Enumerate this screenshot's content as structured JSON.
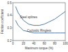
{
  "chart_data": {
    "type": "line",
    "x_label": "Maximum torque (%)",
    "y_label": "Friction coefficient",
    "x": [
      5,
      10,
      20,
      30,
      40,
      50,
      60,
      70,
      80,
      90,
      100
    ],
    "series": [
      {
        "name": "Steel splines",
        "color": "#3b6a96",
        "values": [
          0.47,
          0.42,
          0.36,
          0.33,
          0.32,
          0.32,
          0.33,
          0.35,
          0.37,
          0.4,
          0.43
        ]
      },
      {
        "name": "Cycloidic Ringlets",
        "color": "#3b6a96",
        "values": [
          0.36,
          0.32,
          0.28,
          0.27,
          0.26,
          0.26,
          0.26,
          0.26,
          0.26,
          0.26,
          0.26
        ]
      }
    ],
    "xlim": [
      0,
      100
    ],
    "xticks": [
      0,
      20,
      40,
      60,
      80,
      100
    ],
    "ylim": [
      0.2,
      0.5
    ],
    "yticks": [
      0.2,
      0.3,
      0.4,
      0.5
    ],
    "grid": false
  }
}
